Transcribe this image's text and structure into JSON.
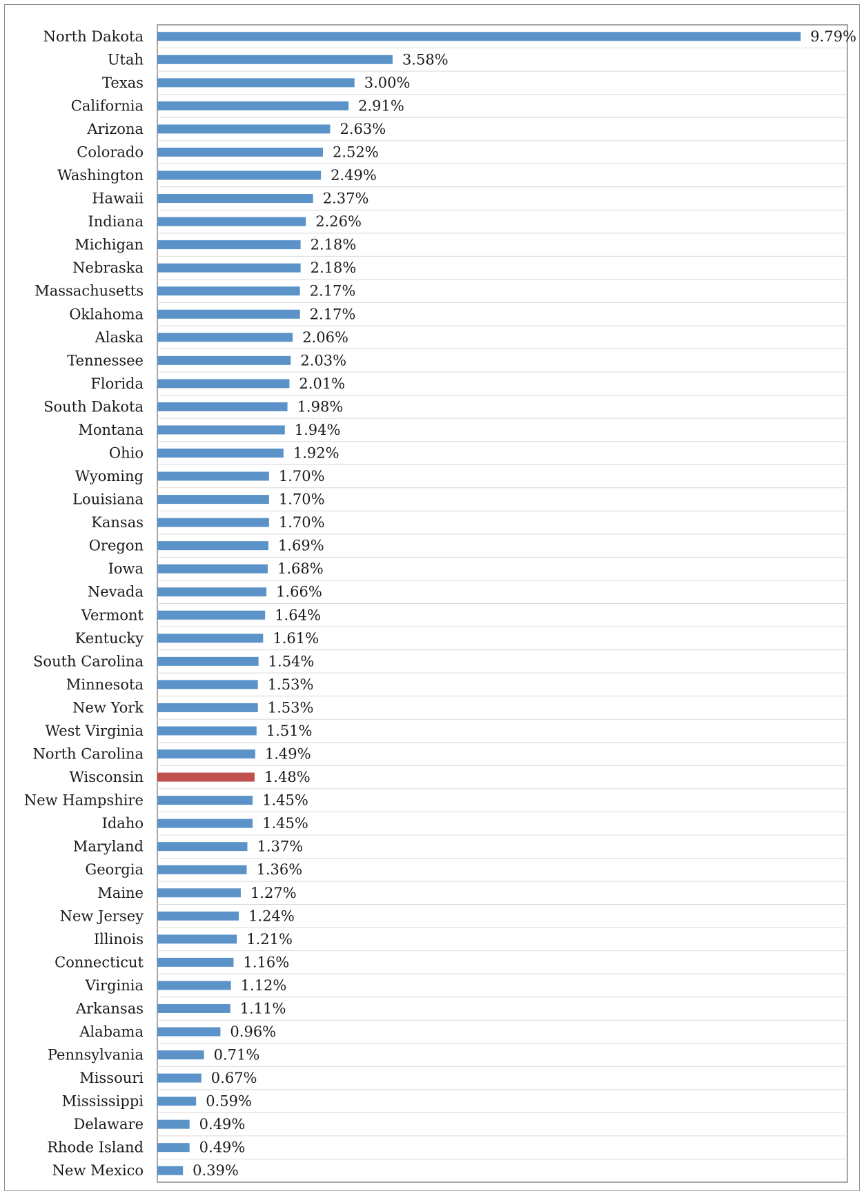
{
  "chart_data": {
    "type": "bar",
    "orientation": "horizontal",
    "title": "",
    "xlabel": "",
    "ylabel": "",
    "xlim": [
      0,
      10.5
    ],
    "grid": "horizontal",
    "legend": "none",
    "value_format": "percent",
    "colors": {
      "default": "#5B93C8",
      "highlight": "#C0504D"
    },
    "highlight": "Wisconsin",
    "categories": [
      "North Dakota",
      "Utah",
      "Texas",
      "California",
      "Arizona",
      "Colorado",
      "Washington",
      "Hawaii",
      "Indiana",
      "Michigan",
      "Nebraska",
      "Massachusetts",
      "Oklahoma",
      "Alaska",
      "Tennessee",
      "Florida",
      "South Dakota",
      "Montana",
      "Ohio",
      "Wyoming",
      "Louisiana",
      "Kansas",
      "Oregon",
      "Iowa",
      "Nevada",
      "Vermont",
      "Kentucky",
      "South Carolina",
      "Minnesota",
      "New York",
      "West Virginia",
      "North Carolina",
      "Wisconsin",
      "New Hampshire",
      "Idaho",
      "Maryland",
      "Georgia",
      "Maine",
      "New Jersey",
      "Illinois",
      "Connecticut",
      "Virginia",
      "Arkansas",
      "Alabama",
      "Pennsylvania",
      "Missouri",
      "Mississippi",
      "Delaware",
      "Rhode Island",
      "New Mexico"
    ],
    "values": [
      9.79,
      3.58,
      3.0,
      2.91,
      2.63,
      2.52,
      2.49,
      2.37,
      2.26,
      2.18,
      2.18,
      2.17,
      2.17,
      2.06,
      2.03,
      2.01,
      1.98,
      1.94,
      1.92,
      1.7,
      1.7,
      1.7,
      1.69,
      1.68,
      1.66,
      1.64,
      1.61,
      1.54,
      1.53,
      1.53,
      1.51,
      1.49,
      1.48,
      1.45,
      1.45,
      1.37,
      1.36,
      1.27,
      1.24,
      1.21,
      1.16,
      1.12,
      1.11,
      0.96,
      0.71,
      0.67,
      0.59,
      0.49,
      0.49,
      0.39
    ],
    "value_labels": [
      "9.79%",
      "3.58%",
      "3.00%",
      "2.91%",
      "2.63%",
      "2.52%",
      "2.49%",
      "2.37%",
      "2.26%",
      "2.18%",
      "2.18%",
      "2.17%",
      "2.17%",
      "2.06%",
      "2.03%",
      "2.01%",
      "1.98%",
      "1.94%",
      "1.92%",
      "1.70%",
      "1.70%",
      "1.70%",
      "1.69%",
      "1.68%",
      "1.66%",
      "1.64%",
      "1.61%",
      "1.54%",
      "1.53%",
      "1.53%",
      "1.51%",
      "1.49%",
      "1.48%",
      "1.45%",
      "1.45%",
      "1.37%",
      "1.36%",
      "1.27%",
      "1.24%",
      "1.21%",
      "1.16%",
      "1.12%",
      "1.11%",
      "0.96%",
      "0.71%",
      "0.67%",
      "0.59%",
      "0.49%",
      "0.49%",
      "0.39%"
    ]
  }
}
